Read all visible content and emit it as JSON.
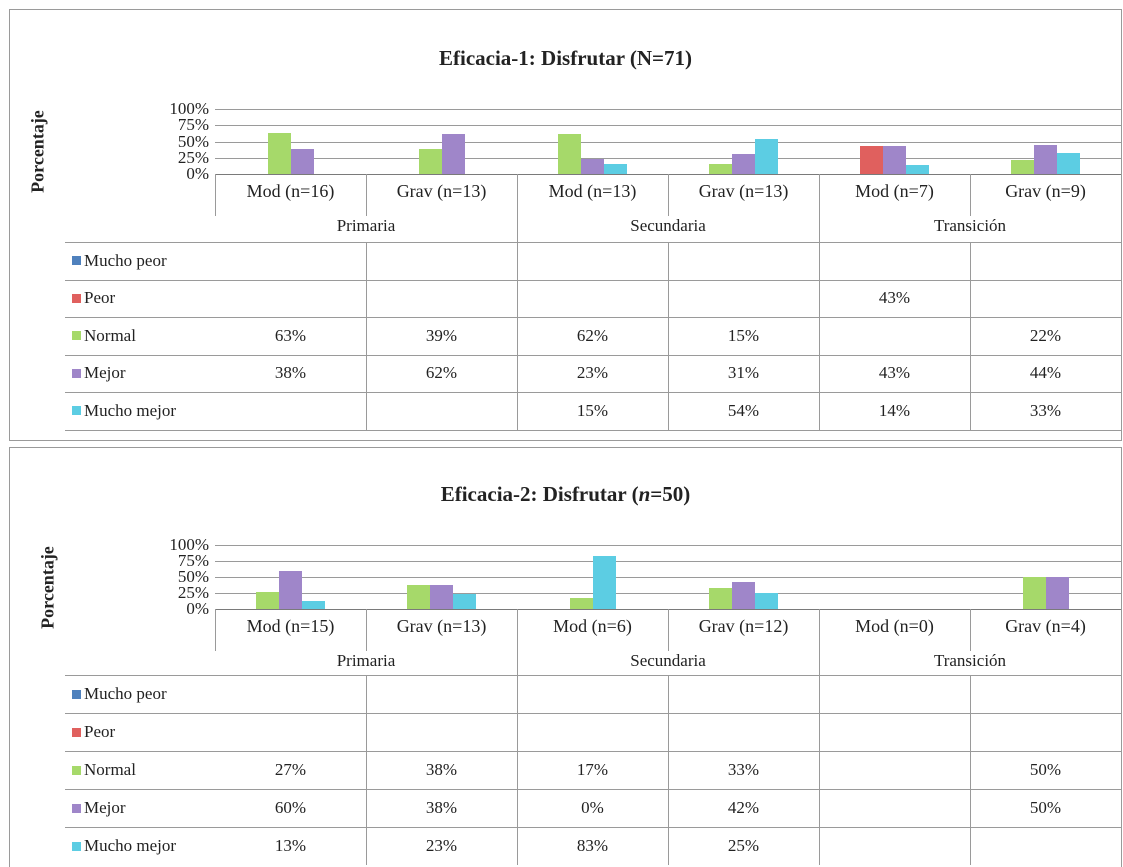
{
  "colors": {
    "Mucho peor": "#4f81bd",
    "Peor": "#e0605e",
    "Normal": "#a6d96a",
    "Mejor": "#9f86c9",
    "Mucho mejor": "#5ccde3"
  },
  "chart_data": [
    {
      "type": "bar",
      "title": "Eficacia-1: Disfrutar (N=71)",
      "ylabel": "Porcentaje",
      "ylim": [
        0,
        100
      ],
      "yticks": [
        "100%",
        "75%",
        "50%",
        "25%",
        "0%"
      ],
      "categories": [
        "Mod (n=16)",
        "Grav (n=13)",
        "Mod (n=13)",
        "Grav (n=13)",
        "Mod (n=7)",
        "Grav (n=9)"
      ],
      "groups": [
        "Primaria",
        "Secundaria",
        "Transición"
      ],
      "series": [
        {
          "name": "Mucho peor",
          "values": [
            null,
            null,
            null,
            null,
            null,
            null
          ],
          "labels": [
            "",
            "",
            "",
            "",
            "",
            ""
          ]
        },
        {
          "name": "Peor",
          "values": [
            null,
            null,
            null,
            null,
            43,
            null
          ],
          "labels": [
            "",
            "",
            "",
            "",
            "43%",
            ""
          ]
        },
        {
          "name": "Normal",
          "values": [
            63,
            39,
            62,
            15,
            null,
            22
          ],
          "labels": [
            "63%",
            "39%",
            "62%",
            "15%",
            "",
            "22%"
          ]
        },
        {
          "name": "Mejor",
          "values": [
            38,
            62,
            23,
            31,
            43,
            44
          ],
          "labels": [
            "38%",
            "62%",
            "23%",
            "31%",
            "43%",
            "44%"
          ]
        },
        {
          "name": "Mucho mejor",
          "values": [
            null,
            null,
            15,
            54,
            14,
            33
          ],
          "labels": [
            "",
            "",
            "15%",
            "54%",
            "14%",
            "33%"
          ]
        }
      ]
    },
    {
      "type": "bar",
      "title_main": "Eficacia-2: Disfrutar (",
      "title_italic": "n",
      "title_rest": "=50)",
      "ylabel": "Porcentaje",
      "ylim": [
        0,
        100
      ],
      "yticks": [
        "100%",
        "75%",
        "50%",
        "25%",
        "0%"
      ],
      "categories": [
        "Mod (n=15)",
        "Grav (n=13)",
        "Mod (n=6)",
        "Grav (n=12)",
        "Mod (n=0)",
        "Grav (n=4)"
      ],
      "groups": [
        "Primaria",
        "Secundaria",
        "Transición"
      ],
      "series": [
        {
          "name": "Mucho peor",
          "values": [
            null,
            null,
            null,
            null,
            null,
            null
          ],
          "labels": [
            "",
            "",
            "",
            "",
            "",
            ""
          ]
        },
        {
          "name": "Peor",
          "values": [
            null,
            null,
            null,
            null,
            null,
            null
          ],
          "labels": [
            "",
            "",
            "",
            "",
            "",
            ""
          ]
        },
        {
          "name": "Normal",
          "values": [
            27,
            38,
            17,
            33,
            null,
            50
          ],
          "labels": [
            "27%",
            "38%",
            "17%",
            "33%",
            "",
            "50%"
          ]
        },
        {
          "name": "Mejor",
          "values": [
            60,
            38,
            0,
            42,
            null,
            50
          ],
          "labels": [
            "60%",
            "38%",
            "0%",
            "42%",
            "",
            "50%"
          ]
        },
        {
          "name": "Mucho mejor",
          "values": [
            13,
            23,
            83,
            25,
            null,
            null
          ],
          "labels": [
            "13%",
            "23%",
            "83%",
            "25%",
            "",
            ""
          ]
        }
      ]
    }
  ]
}
